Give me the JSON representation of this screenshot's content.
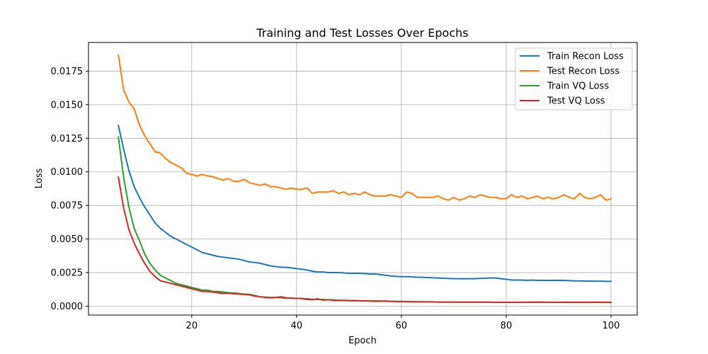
{
  "chart_data": {
    "type": "line",
    "title": "Training and Test Losses Over Epochs",
    "xlabel": "Epoch",
    "ylabel": "Loss",
    "xlim": [
      0.3,
      105
    ],
    "ylim": [
      -0.00066,
      0.01963
    ],
    "xticks": [
      20,
      40,
      60,
      80,
      100
    ],
    "xtick_labels": [
      "20",
      "40",
      "60",
      "80",
      "100"
    ],
    "yticks": [
      0.0,
      0.0025,
      0.005,
      0.0075,
      0.01,
      0.0125,
      0.015,
      0.0175
    ],
    "ytick_labels": [
      "0.0000",
      "0.0025",
      "0.0050",
      "0.0075",
      "0.0100",
      "0.0125",
      "0.0150",
      "0.0175"
    ],
    "grid": true,
    "legend_position": "top-right",
    "x": [
      6,
      7,
      8,
      9,
      10,
      11,
      12,
      13,
      14,
      15,
      16,
      17,
      18,
      19,
      20,
      21,
      22,
      23,
      24,
      25,
      26,
      27,
      28,
      29,
      30,
      31,
      32,
      33,
      34,
      35,
      36,
      37,
      38,
      39,
      40,
      41,
      42,
      43,
      44,
      45,
      46,
      47,
      48,
      49,
      50,
      51,
      52,
      53,
      54,
      55,
      56,
      57,
      58,
      59,
      60,
      61,
      62,
      63,
      64,
      65,
      66,
      67,
      68,
      69,
      70,
      71,
      72,
      73,
      74,
      75,
      76,
      77,
      78,
      79,
      80,
      81,
      82,
      83,
      84,
      85,
      86,
      87,
      88,
      89,
      90,
      91,
      92,
      93,
      94,
      95,
      96,
      97,
      98,
      99,
      100
    ],
    "series": [
      {
        "name": "Train Recon Loss",
        "color": "#1f77b4",
        "values": [
          0.01345,
          0.0117,
          0.0101,
          0.0089,
          0.0081,
          0.0074,
          0.0068,
          0.0062,
          0.0058,
          0.0055,
          0.0052,
          0.005,
          0.0048,
          0.0046,
          0.0044,
          0.0042,
          0.004,
          0.0039,
          0.0038,
          0.0037,
          0.00365,
          0.0036,
          0.00355,
          0.0035,
          0.0034,
          0.0033,
          0.00325,
          0.0032,
          0.0031,
          0.003,
          0.00295,
          0.0029,
          0.0029,
          0.00285,
          0.0028,
          0.00275,
          0.0027,
          0.0026,
          0.00255,
          0.00255,
          0.0025,
          0.0025,
          0.0025,
          0.00248,
          0.00245,
          0.00245,
          0.00245,
          0.00242,
          0.0024,
          0.0024,
          0.00235,
          0.0023,
          0.00225,
          0.00222,
          0.0022,
          0.0022,
          0.00218,
          0.00216,
          0.00215,
          0.00213,
          0.00212,
          0.0021,
          0.00208,
          0.00206,
          0.00205,
          0.00205,
          0.00204,
          0.00205,
          0.00205,
          0.00207,
          0.00208,
          0.0021,
          0.0021,
          0.00205,
          0.002,
          0.00195,
          0.00195,
          0.00194,
          0.00193,
          0.00194,
          0.00192,
          0.00193,
          0.00192,
          0.00192,
          0.00193,
          0.00192,
          0.0019,
          0.00188,
          0.00188,
          0.00187,
          0.00187,
          0.00186,
          0.00186,
          0.00185,
          0.00185
        ]
      },
      {
        "name": "Test Recon Loss",
        "color": "#ff7f0e",
        "values": [
          0.0187,
          0.0161,
          0.0152,
          0.0147,
          0.0135,
          0.0127,
          0.0121,
          0.0115,
          0.0114,
          0.011,
          0.0107,
          0.0105,
          0.0103,
          0.0099,
          0.0098,
          0.0097,
          0.0098,
          0.0097,
          0.00965,
          0.0095,
          0.0094,
          0.0095,
          0.0093,
          0.0093,
          0.00945,
          0.0092,
          0.0091,
          0.009,
          0.0091,
          0.0089,
          0.0089,
          0.0088,
          0.0087,
          0.0088,
          0.0087,
          0.0087,
          0.0088,
          0.0084,
          0.0085,
          0.0085,
          0.0085,
          0.0086,
          0.0084,
          0.0085,
          0.0083,
          0.0084,
          0.0083,
          0.0085,
          0.0083,
          0.0082,
          0.0082,
          0.0082,
          0.0083,
          0.0082,
          0.0081,
          0.0085,
          0.0084,
          0.0081,
          0.0081,
          0.0081,
          0.0081,
          0.0082,
          0.008,
          0.0079,
          0.0081,
          0.0079,
          0.008,
          0.0082,
          0.0081,
          0.0083,
          0.0082,
          0.0081,
          0.0081,
          0.008,
          0.008,
          0.0083,
          0.0081,
          0.0082,
          0.008,
          0.0081,
          0.0082,
          0.008,
          0.0081,
          0.008,
          0.0081,
          0.0083,
          0.0081,
          0.008,
          0.0084,
          0.0081,
          0.008,
          0.0081,
          0.0083,
          0.0079,
          0.008
        ]
      },
      {
        "name": "Train VQ Loss",
        "color": "#2ca02c",
        "values": [
          0.0126,
          0.0096,
          0.0074,
          0.0058,
          0.0049,
          0.0039,
          0.0032,
          0.0027,
          0.0023,
          0.0021,
          0.0019,
          0.0017,
          0.0016,
          0.0015,
          0.0014,
          0.0013,
          0.0012,
          0.0012,
          0.0011,
          0.0011,
          0.00105,
          0.001,
          0.00098,
          0.00095,
          0.0009,
          0.00088,
          0.0008,
          0.0007,
          0.00068,
          0.00065,
          0.00065,
          0.00062,
          0.0006,
          0.0006,
          0.00058,
          0.00057,
          0.00055,
          0.00052,
          0.0005,
          0.0005,
          0.00048,
          0.00047,
          0.00045,
          0.00044,
          0.00043,
          0.00042,
          0.00041,
          0.0004,
          0.0004,
          0.0004,
          0.00039,
          0.00038,
          0.00037,
          0.00036,
          0.00035,
          0.00035,
          0.00034,
          0.00033,
          0.00033,
          0.00032,
          0.00032,
          0.00031,
          0.00031,
          0.0003,
          0.0003,
          0.0003,
          0.0003,
          0.0003,
          0.0003,
          0.0003,
          0.0003,
          0.0003,
          0.00029,
          0.00029,
          0.00029,
          0.00029,
          0.00029,
          0.00029,
          0.00029,
          0.00029,
          0.00029,
          0.00029,
          0.00029,
          0.00029,
          0.00029,
          0.00029,
          0.00028,
          0.00028,
          0.00028,
          0.00028,
          0.00028,
          0.00028,
          0.00028,
          0.00028,
          0.00028
        ]
      },
      {
        "name": "Test VQ Loss",
        "color": "#d62728",
        "values": [
          0.0096,
          0.0073,
          0.0057,
          0.0047,
          0.0039,
          0.0032,
          0.0026,
          0.0022,
          0.0019,
          0.0018,
          0.0017,
          0.0016,
          0.0015,
          0.0014,
          0.0013,
          0.0012,
          0.0011,
          0.0011,
          0.00105,
          0.001,
          0.00095,
          0.00098,
          0.00092,
          0.0009,
          0.00088,
          0.00085,
          0.00075,
          0.0007,
          0.00065,
          0.00063,
          0.00065,
          0.0007,
          0.00063,
          0.0006,
          0.00058,
          0.00058,
          0.0005,
          0.00048,
          0.00055,
          0.00045,
          0.00048,
          0.00044,
          0.00043,
          0.00042,
          0.00041,
          0.0004,
          0.0004,
          0.00039,
          0.00038,
          0.00037,
          0.00037,
          0.00038,
          0.00036,
          0.00035,
          0.00035,
          0.00034,
          0.00034,
          0.00033,
          0.00033,
          0.00032,
          0.00032,
          0.00031,
          0.00031,
          0.0003,
          0.0003,
          0.0003,
          0.0003,
          0.0003,
          0.0003,
          0.0003,
          0.0003,
          0.0003,
          0.00029,
          0.00029,
          0.00029,
          0.00029,
          0.00029,
          0.00029,
          0.0003,
          0.0003,
          0.00031,
          0.00031,
          0.00029,
          0.00029,
          0.00029,
          0.0003,
          0.0003,
          0.00029,
          0.0003,
          0.00029,
          0.00029,
          0.0003,
          0.0003,
          0.00029,
          0.00028
        ]
      }
    ]
  }
}
